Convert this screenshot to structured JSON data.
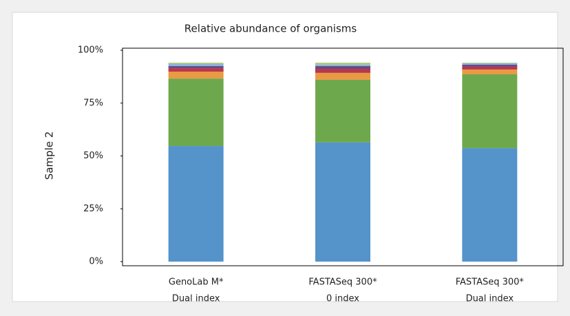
{
  "chart_data": {
    "type": "stacked-bar",
    "title": "Relative abundance of organisms",
    "y_label": "Sample 2",
    "categories": [
      [
        "GenoLab M*",
        "Dual index"
      ],
      [
        "FASTASeq 300*",
        "0 index"
      ],
      [
        "FASTASeq 300*",
        "Dual index"
      ]
    ],
    "series": [
      {
        "color": "#5593cb",
        "values": [
          54.7,
          56.4,
          53.7
        ]
      },
      {
        "color": "#6ea84d",
        "values": [
          31.9,
          29.6,
          34.9
        ]
      },
      {
        "color": "#e99a45",
        "values": [
          3.3,
          3.3,
          2.3
        ]
      },
      {
        "color": "#b9374a",
        "values": [
          1.6,
          1.9,
          1.3
        ]
      },
      {
        "color": "#654b8a",
        "values": [
          1.0,
          1.3,
          1.0
        ]
      },
      {
        "color": "#8db3da",
        "values": [
          1.0,
          0.7,
          0.6
        ]
      },
      {
        "color": "#a8c97c",
        "values": [
          0.6,
          0.9,
          0.3
        ]
      }
    ],
    "ylim": [
      0,
      100
    ],
    "yticks": [
      {
        "value": 0,
        "label": "0%"
      },
      {
        "value": 25,
        "label": "25%"
      },
      {
        "value": 50,
        "label": "50%"
      },
      {
        "value": 75,
        "label": "75%"
      },
      {
        "value": 100,
        "label": "100%"
      }
    ]
  }
}
